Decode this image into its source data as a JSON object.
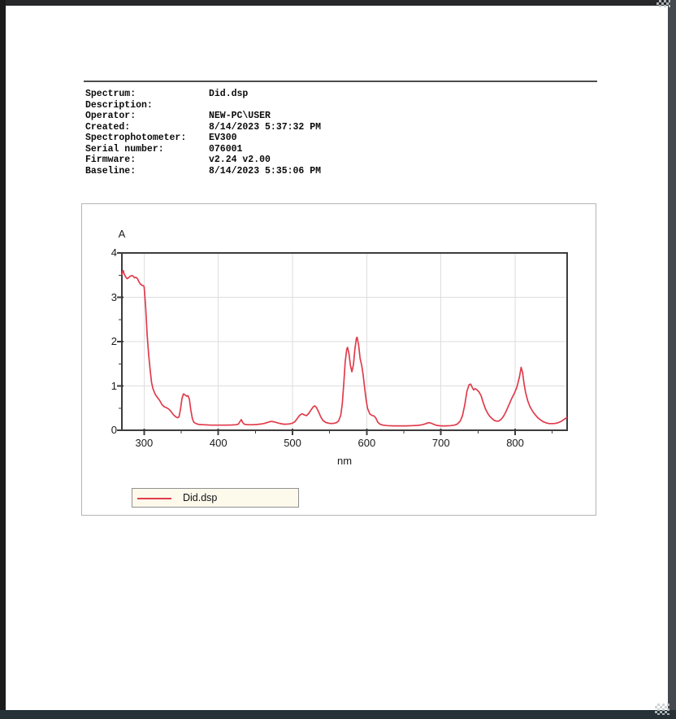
{
  "report": {
    "meta": {
      "rows": [
        {
          "label": "Spectrum:",
          "value": "Did.dsp"
        },
        {
          "label": "Description:",
          "value": ""
        },
        {
          "label": "Operator:",
          "value": "NEW-PC\\USER"
        },
        {
          "label": "Created:",
          "value": "8/14/2023 5:37:32 PM"
        },
        {
          "label": "Spectrophotometer:",
          "value": "EV300"
        },
        {
          "label": "Serial number:",
          "value": "076001"
        },
        {
          "label": "Firmware:",
          "value": "v2.24 v2.00"
        },
        {
          "label": "Baseline:",
          "value": "8/14/2023 5:35:06 PM"
        }
      ]
    }
  },
  "colors": {
    "curve": "#e03c4c",
    "grid": "#dedede",
    "frame": "#3d3d3d",
    "tick": "#3d3d3d",
    "legend_bg": "#fdfaec",
    "rule": "#4d4d4d"
  },
  "chart_data": {
    "type": "line",
    "title": "",
    "ylabel": "A",
    "xlabel": "nm",
    "x_range": [
      270,
      870
    ],
    "y_range": [
      0,
      4
    ],
    "x_major_ticks": [
      300,
      400,
      500,
      600,
      700,
      800
    ],
    "x_minor_ticks": [
      350,
      450,
      550,
      650,
      750,
      850
    ],
    "y_major_ticks": [
      0,
      1,
      2,
      3,
      4
    ],
    "y_minor_ticks": [
      0.5,
      1.5,
      2.5,
      3.5
    ],
    "grid": true,
    "legend": {
      "position": "bottom-left",
      "entries": [
        {
          "label": "Did.dsp",
          "color": "#e03c4c"
        }
      ]
    },
    "series": [
      {
        "name": "Did.dsp",
        "color": "#e03c4c",
        "points": [
          [
            270,
            3.5
          ],
          [
            271,
            3.58
          ],
          [
            272,
            3.6
          ],
          [
            273,
            3.53
          ],
          [
            275,
            3.46
          ],
          [
            277,
            3.42
          ],
          [
            279,
            3.44
          ],
          [
            281,
            3.47
          ],
          [
            283,
            3.49
          ],
          [
            285,
            3.48
          ],
          [
            287,
            3.44
          ],
          [
            289,
            3.45
          ],
          [
            291,
            3.42
          ],
          [
            293,
            3.35
          ],
          [
            295,
            3.3
          ],
          [
            297,
            3.27
          ],
          [
            299,
            3.26
          ],
          [
            300,
            3.24
          ],
          [
            302,
            2.8
          ],
          [
            304,
            2.15
          ],
          [
            306,
            1.72
          ],
          [
            308,
            1.38
          ],
          [
            310,
            1.08
          ],
          [
            312,
            0.93
          ],
          [
            315,
            0.81
          ],
          [
            318,
            0.74
          ],
          [
            321,
            0.67
          ],
          [
            324,
            0.58
          ],
          [
            327,
            0.53
          ],
          [
            330,
            0.51
          ],
          [
            333,
            0.48
          ],
          [
            336,
            0.43
          ],
          [
            339,
            0.36
          ],
          [
            342,
            0.31
          ],
          [
            345,
            0.28
          ],
          [
            347,
            0.3
          ],
          [
            349,
            0.48
          ],
          [
            351,
            0.72
          ],
          [
            353,
            0.82
          ],
          [
            355,
            0.8
          ],
          [
            357,
            0.77
          ],
          [
            359,
            0.78
          ],
          [
            361,
            0.7
          ],
          [
            363,
            0.45
          ],
          [
            365,
            0.26
          ],
          [
            367,
            0.18
          ],
          [
            370,
            0.15
          ],
          [
            374,
            0.13
          ],
          [
            380,
            0.125
          ],
          [
            390,
            0.115
          ],
          [
            400,
            0.115
          ],
          [
            410,
            0.115
          ],
          [
            418,
            0.12
          ],
          [
            424,
            0.125
          ],
          [
            427,
            0.14
          ],
          [
            429,
            0.19
          ],
          [
            431,
            0.24
          ],
          [
            433,
            0.17
          ],
          [
            435,
            0.135
          ],
          [
            440,
            0.125
          ],
          [
            446,
            0.125
          ],
          [
            452,
            0.13
          ],
          [
            457,
            0.14
          ],
          [
            462,
            0.155
          ],
          [
            467,
            0.18
          ],
          [
            471,
            0.2
          ],
          [
            475,
            0.19
          ],
          [
            479,
            0.17
          ],
          [
            484,
            0.148
          ],
          [
            489,
            0.135
          ],
          [
            494,
            0.14
          ],
          [
            499,
            0.155
          ],
          [
            503,
            0.19
          ],
          [
            507,
            0.28
          ],
          [
            510,
            0.345
          ],
          [
            513,
            0.37
          ],
          [
            516,
            0.345
          ],
          [
            519,
            0.33
          ],
          [
            522,
            0.385
          ],
          [
            525,
            0.46
          ],
          [
            528,
            0.53
          ],
          [
            530,
            0.55
          ],
          [
            532,
            0.52
          ],
          [
            535,
            0.42
          ],
          [
            538,
            0.3
          ],
          [
            541,
            0.22
          ],
          [
            545,
            0.175
          ],
          [
            550,
            0.155
          ],
          [
            555,
            0.155
          ],
          [
            559,
            0.17
          ],
          [
            562,
            0.21
          ],
          [
            565,
            0.34
          ],
          [
            567,
            0.6
          ],
          [
            569,
            1.05
          ],
          [
            571,
            1.55
          ],
          [
            573,
            1.82
          ],
          [
            574,
            1.87
          ],
          [
            576,
            1.73
          ],
          [
            578,
            1.46
          ],
          [
            580,
            1.32
          ],
          [
            582,
            1.48
          ],
          [
            584,
            1.83
          ],
          [
            586,
            2.07
          ],
          [
            587,
            2.1
          ],
          [
            589,
            1.92
          ],
          [
            591,
            1.62
          ],
          [
            593,
            1.48
          ],
          [
            595,
            1.27
          ],
          [
            597,
            0.97
          ],
          [
            599,
            0.7
          ],
          [
            601,
            0.5
          ],
          [
            604,
            0.37
          ],
          [
            607,
            0.335
          ],
          [
            610,
            0.32
          ],
          [
            612,
            0.28
          ],
          [
            615,
            0.18
          ],
          [
            618,
            0.135
          ],
          [
            622,
            0.115
          ],
          [
            628,
            0.105
          ],
          [
            636,
            0.1
          ],
          [
            645,
            0.1
          ],
          [
            654,
            0.1
          ],
          [
            662,
            0.105
          ],
          [
            669,
            0.11
          ],
          [
            675,
            0.125
          ],
          [
            679,
            0.145
          ],
          [
            683,
            0.17
          ],
          [
            686,
            0.165
          ],
          [
            690,
            0.135
          ],
          [
            694,
            0.11
          ],
          [
            700,
            0.1
          ],
          [
            707,
            0.1
          ],
          [
            713,
            0.105
          ],
          [
            718,
            0.115
          ],
          [
            722,
            0.14
          ],
          [
            726,
            0.21
          ],
          [
            729,
            0.33
          ],
          [
            732,
            0.57
          ],
          [
            735,
            0.88
          ],
          [
            738,
            1.03
          ],
          [
            740,
            1.04
          ],
          [
            742,
            0.97
          ],
          [
            744,
            0.91
          ],
          [
            746,
            0.94
          ],
          [
            748,
            0.92
          ],
          [
            751,
            0.87
          ],
          [
            754,
            0.78
          ],
          [
            757,
            0.62
          ],
          [
            760,
            0.48
          ],
          [
            763,
            0.38
          ],
          [
            766,
            0.31
          ],
          [
            769,
            0.26
          ],
          [
            772,
            0.22
          ],
          [
            775,
            0.205
          ],
          [
            778,
            0.21
          ],
          [
            781,
            0.245
          ],
          [
            784,
            0.31
          ],
          [
            787,
            0.4
          ],
          [
            790,
            0.51
          ],
          [
            793,
            0.63
          ],
          [
            796,
            0.74
          ],
          [
            799,
            0.84
          ],
          [
            802,
            0.96
          ],
          [
            804,
            1.08
          ],
          [
            806,
            1.22
          ],
          [
            808,
            1.42
          ],
          [
            810,
            1.3
          ],
          [
            812,
            1.05
          ],
          [
            814,
            0.85
          ],
          [
            817,
            0.66
          ],
          [
            820,
            0.53
          ],
          [
            823,
            0.44
          ],
          [
            826,
            0.37
          ],
          [
            830,
            0.29
          ],
          [
            834,
            0.235
          ],
          [
            838,
            0.19
          ],
          [
            842,
            0.165
          ],
          [
            846,
            0.15
          ],
          [
            850,
            0.15
          ],
          [
            854,
            0.155
          ],
          [
            858,
            0.17
          ],
          [
            862,
            0.2
          ],
          [
            865,
            0.235
          ],
          [
            868,
            0.27
          ],
          [
            870,
            0.295
          ]
        ]
      }
    ]
  }
}
